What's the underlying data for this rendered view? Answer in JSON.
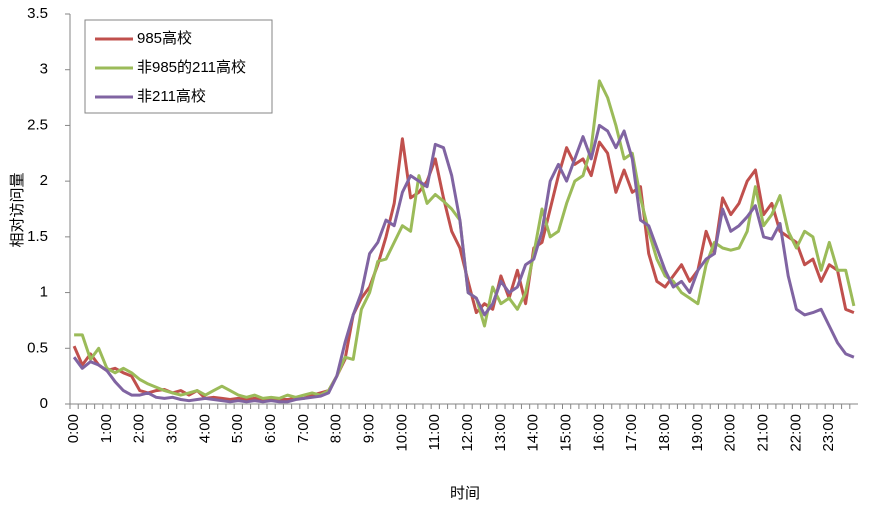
{
  "chart_data": {
    "type": "line",
    "x_label": "时间",
    "y_label": "相对访问量",
    "categories": [
      "0:00",
      null,
      null,
      null,
      "1:00",
      null,
      null,
      null,
      "2:00",
      null,
      null,
      null,
      "3:00",
      null,
      null,
      null,
      "4:00",
      null,
      null,
      null,
      "5:00",
      null,
      null,
      null,
      "6:00",
      null,
      null,
      null,
      "7:00",
      null,
      null,
      null,
      "8:00",
      null,
      null,
      null,
      "9:00",
      null,
      null,
      null,
      "10:00",
      null,
      null,
      null,
      "11:00",
      null,
      null,
      null,
      "12:00",
      null,
      null,
      null,
      "13:00",
      null,
      null,
      null,
      "14:00",
      null,
      null,
      null,
      "15:00",
      null,
      null,
      null,
      "16:00",
      null,
      null,
      null,
      "17:00",
      null,
      null,
      null,
      "18:00",
      null,
      null,
      null,
      "19:00",
      null,
      null,
      null,
      "20:00",
      null,
      null,
      null,
      "21:00",
      null,
      null,
      null,
      "22:00",
      null,
      null,
      null,
      "23:00",
      null,
      null,
      null
    ],
    "series": [
      {
        "name": "985高校",
        "color": "#c0504d",
        "values": [
          0.52,
          0.35,
          0.45,
          0.35,
          0.3,
          0.32,
          0.28,
          0.25,
          0.12,
          0.1,
          0.12,
          0.13,
          0.1,
          0.12,
          0.08,
          0.12,
          0.05,
          0.06,
          0.05,
          0.04,
          0.05,
          0.04,
          0.05,
          0.04,
          0.05,
          0.04,
          0.04,
          0.05,
          0.05,
          0.08,
          0.1,
          0.12,
          0.25,
          0.4,
          0.8,
          0.95,
          1.05,
          1.25,
          1.5,
          1.8,
          2.38,
          1.85,
          1.9,
          2.0,
          2.2,
          1.85,
          1.55,
          1.4,
          1.1,
          0.82,
          0.9,
          0.85,
          1.15,
          0.95,
          1.2,
          0.9,
          1.4,
          1.45,
          1.75,
          2.05,
          2.3,
          2.15,
          2.2,
          2.05,
          2.35,
          2.25,
          1.9,
          2.1,
          1.9,
          1.95,
          1.35,
          1.1,
          1.05,
          1.15,
          1.25,
          1.1,
          1.2,
          1.55,
          1.35,
          1.85,
          1.7,
          1.8,
          2.0,
          2.1,
          1.7,
          1.8,
          1.55,
          1.5,
          1.45,
          1.25,
          1.3,
          1.1,
          1.25,
          1.2,
          0.85,
          0.82
        ]
      },
      {
        "name": "非985的211高校",
        "color": "#9bbb59",
        "values": [
          0.62,
          0.62,
          0.4,
          0.5,
          0.32,
          0.28,
          0.32,
          0.28,
          0.22,
          0.18,
          0.15,
          0.12,
          0.1,
          0.08,
          0.1,
          0.12,
          0.08,
          0.12,
          0.16,
          0.12,
          0.08,
          0.06,
          0.08,
          0.05,
          0.06,
          0.05,
          0.08,
          0.06,
          0.08,
          0.1,
          0.08,
          0.12,
          0.25,
          0.42,
          0.4,
          0.85,
          1.0,
          1.28,
          1.3,
          1.45,
          1.6,
          1.55,
          2.05,
          1.8,
          1.88,
          1.82,
          1.75,
          1.65,
          1.0,
          0.95,
          0.7,
          1.05,
          0.9,
          0.95,
          0.85,
          1.0,
          1.35,
          1.75,
          1.5,
          1.55,
          1.8,
          2.0,
          2.05,
          2.3,
          2.9,
          2.75,
          2.5,
          2.2,
          2.25,
          1.85,
          1.55,
          1.3,
          1.15,
          1.1,
          1.0,
          0.95,
          0.9,
          1.25,
          1.45,
          1.4,
          1.38,
          1.4,
          1.55,
          1.95,
          1.6,
          1.7,
          1.87,
          1.55,
          1.4,
          1.55,
          1.5,
          1.2,
          1.45,
          1.2,
          1.2,
          0.88
        ]
      },
      {
        "name": "非211高校",
        "color": "#8064a2",
        "values": [
          0.42,
          0.32,
          0.38,
          0.35,
          0.3,
          0.2,
          0.12,
          0.08,
          0.08,
          0.1,
          0.06,
          0.05,
          0.06,
          0.04,
          0.03,
          0.04,
          0.05,
          0.04,
          0.03,
          0.02,
          0.03,
          0.02,
          0.03,
          0.02,
          0.03,
          0.02,
          0.02,
          0.04,
          0.05,
          0.06,
          0.07,
          0.1,
          0.25,
          0.55,
          0.8,
          1.0,
          1.35,
          1.45,
          1.65,
          1.6,
          1.9,
          2.05,
          2.0,
          1.95,
          2.33,
          2.3,
          2.05,
          1.65,
          1.0,
          0.95,
          0.8,
          0.9,
          1.1,
          1.0,
          1.05,
          1.25,
          1.3,
          1.55,
          2.0,
          2.15,
          2.0,
          2.2,
          2.4,
          2.2,
          2.5,
          2.45,
          2.3,
          2.45,
          2.2,
          1.65,
          1.6,
          1.4,
          1.2,
          1.05,
          1.1,
          1.0,
          1.2,
          1.3,
          1.35,
          1.75,
          1.55,
          1.6,
          1.68,
          1.78,
          1.5,
          1.48,
          1.62,
          1.15,
          0.85,
          0.8,
          0.82,
          0.85,
          0.7,
          0.55,
          0.45,
          0.42
        ]
      }
    ],
    "ylim": [
      0,
      3.5
    ],
    "yticks": [
      0,
      0.5,
      1,
      1.5,
      2,
      2.5,
      3,
      3.5
    ],
    "grid": false,
    "legend": "upper left"
  }
}
